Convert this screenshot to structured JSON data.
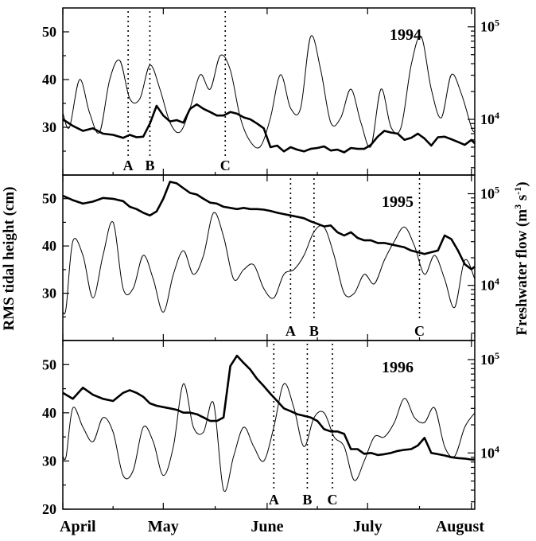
{
  "chart_data": {
    "type": "line",
    "ylabel_left": "RMS tidal height (cm)",
    "ylabel_right": "Freshwater flow (m3 s-1)",
    "ylabel_right_parts": {
      "main": "Freshwater flow (m",
      "exp1": "3",
      "mid": " s",
      "exp2": "-1",
      "end": ")"
    },
    "left_axis": {
      "ylim": [
        20,
        55
      ],
      "ticks": [
        20,
        30,
        40,
        50
      ],
      "tick_labels": [
        "20",
        "30",
        "40",
        "50"
      ]
    },
    "right_axis": {
      "scale": "log",
      "ylim": [
        2500,
        160000
      ],
      "tick_values": [
        10000,
        100000
      ],
      "tick_base": "10",
      "tick_exponents": [
        "4",
        "5"
      ]
    },
    "x_axis": {
      "range_days": [
        0,
        123
      ],
      "tick_days": [
        0,
        30,
        61,
        91,
        122
      ],
      "tick_labels": [
        "April",
        "May",
        "June",
        "July",
        "August"
      ]
    },
    "panels": [
      {
        "year": "1994",
        "series": [
          {
            "role": "tidal",
            "x": [
              0,
              2,
              5,
              8,
              11,
              14,
              17,
              20,
              23,
              26,
              29,
              32,
              35,
              38,
              41,
              44,
              47,
              50,
              53,
              56,
              59,
              62,
              65,
              68,
              71,
              74,
              77,
              80,
              83,
              86,
              89,
              92,
              95,
              98,
              101,
              104,
              107,
              110,
              113,
              116,
              119,
              122,
              123
            ],
            "y": [
              33,
              30,
              40,
              33,
              29,
              40,
              44,
              36,
              36,
              43,
              38,
              31,
              29,
              34,
              41,
              38,
              45,
              42,
              32,
              27,
              26,
              32,
              41,
              34,
              34,
              49,
              42,
              31,
              32,
              38,
              31,
              26,
              38,
              30,
              30,
              43,
              49,
              38,
              32,
              41,
              37,
              30,
              29
            ]
          },
          {
            "role": "flow",
            "x": [
              0,
              3,
              6,
              9,
              12,
              15,
              18,
              20,
              22,
              24,
              26,
              28,
              30,
              32,
              34,
              36,
              38,
              40,
              42,
              44,
              46,
              48,
              50,
              52,
              54,
              56,
              58,
              60,
              62,
              64,
              66,
              68,
              70,
              72,
              74,
              76,
              78,
              80,
              82,
              84,
              86,
              88,
              90,
              92,
              94,
              96,
              98,
              100,
              102,
              104,
              106,
              108,
              110,
              112,
              114,
              116,
              118,
              120,
              122,
              123
            ],
            "y": [
              10000,
              8500,
              7500,
              8000,
              7000,
              6800,
              6300,
              6800,
              6400,
              6500,
              9000,
              14000,
              11000,
              9500,
              9800,
              9200,
              13000,
              14500,
              13000,
              12000,
              11000,
              11000,
              12000,
              11500,
              10500,
              10000,
              9000,
              8000,
              5000,
              5200,
              4500,
              5000,
              4700,
              4500,
              4800,
              4900,
              5100,
              4600,
              4700,
              4400,
              4900,
              4800,
              4800,
              5300,
              6500,
              7500,
              7200,
              7000,
              6000,
              6300,
              7000,
              6200,
              5200,
              6400,
              6500,
              6100,
              5700,
              5300,
              6000,
              5500
            ]
          }
        ],
        "event_labels": [
          "A",
          "B",
          "C"
        ],
        "event_days": [
          19.5,
          26,
          48.5
        ]
      },
      {
        "year": "1995",
        "series": [
          {
            "role": "tidal",
            "x": [
              0,
              1,
              3,
              6,
              9,
              12,
              15,
              18,
              21,
              24,
              27,
              30,
              33,
              36,
              39,
              42,
              45,
              48,
              51,
              54,
              57,
              60,
              63,
              66,
              69,
              72,
              75,
              78,
              81,
              84,
              87,
              90,
              93,
              96,
              99,
              102,
              105,
              108,
              111,
              114,
              117,
              120,
              123
            ],
            "y": [
              26,
              27,
              41,
              38,
              29,
              38,
              45,
              31,
              31,
              38,
              33,
              26,
              34,
              39,
              34,
              38,
              47,
              42,
              33,
              35,
              36,
              31,
              29,
              34,
              35,
              38,
              43,
              44,
              38,
              30,
              30,
              34,
              32,
              37,
              41,
              44,
              40,
              34,
              38,
              33,
              27,
              37,
              33
            ]
          },
          {
            "role": "flow",
            "x": [
              0,
              3,
              6,
              9,
              12,
              15,
              18,
              20,
              22,
              24,
              26,
              28,
              30,
              32,
              34,
              36,
              38,
              40,
              42,
              44,
              46,
              48,
              50,
              52,
              54,
              56,
              58,
              60,
              62,
              64,
              66,
              68,
              70,
              72,
              74,
              76,
              78,
              80,
              82,
              84,
              86,
              88,
              90,
              92,
              94,
              96,
              98,
              100,
              102,
              104,
              106,
              108,
              110,
              112,
              114,
              116,
              118,
              120,
              122,
              123
            ],
            "y": [
              95000,
              85000,
              78000,
              82000,
              90000,
              88000,
              83000,
              72000,
              68000,
              62000,
              58000,
              64000,
              88000,
              135000,
              130000,
              115000,
              102000,
              98000,
              88000,
              80000,
              78000,
              72000,
              70000,
              68000,
              70000,
              68000,
              68000,
              67000,
              65000,
              62000,
              60000,
              58000,
              56000,
              54000,
              50000,
              47000,
              44000,
              45000,
              38000,
              35000,
              38000,
              33000,
              31000,
              31000,
              29000,
              29000,
              28000,
              27000,
              26000,
              24000,
              23000,
              22000,
              23000,
              24000,
              35000,
              32000,
              24000,
              17000,
              15000,
              16000
            ]
          }
        ],
        "event_labels": [
          "A",
          "B",
          "C"
        ],
        "event_days": [
          68,
          75,
          106.5
        ]
      },
      {
        "year": "1996",
        "series": [
          {
            "role": "tidal",
            "x": [
              0,
              1,
              3,
              6,
              9,
              12,
              15,
              18,
              21,
              24,
              27,
              30,
              33,
              36,
              39,
              42,
              45,
              48,
              51,
              54,
              57,
              60,
              63,
              66,
              69,
              72,
              75,
              78,
              81,
              84,
              87,
              90,
              93,
              96,
              99,
              102,
              105,
              108,
              111,
              114,
              117,
              120,
              123
            ],
            "y": [
              31,
              31,
              41,
              37,
              34,
              39,
              36,
              27,
              28,
              37,
              34,
              27,
              33,
              46,
              37,
              36,
              42,
              24,
              31,
              37,
              33,
              30,
              37,
              46,
              41,
              33,
              39,
              40,
              35,
              33,
              26,
              30,
              35,
              35,
              38,
              43,
              39,
              38,
              41,
              33,
              31,
              37,
              40
            ]
          },
          {
            "role": "flow",
            "x": [
              0,
              3,
              6,
              9,
              12,
              15,
              18,
              20,
              22,
              24,
              26,
              28,
              30,
              32,
              34,
              36,
              38,
              40,
              42,
              44,
              46,
              48,
              50,
              52,
              54,
              56,
              58,
              60,
              62,
              64,
              66,
              68,
              70,
              72,
              74,
              76,
              78,
              80,
              82,
              84,
              86,
              88,
              90,
              92,
              94,
              96,
              98,
              100,
              102,
              104,
              106,
              108,
              110,
              112,
              114,
              116,
              118,
              120,
              122,
              123
            ],
            "y": [
              44000,
              38000,
              50000,
              42000,
              38000,
              36000,
              44000,
              47000,
              44000,
              40000,
              34000,
              32000,
              31000,
              30000,
              29000,
              27000,
              27000,
              26000,
              24000,
              22000,
              22000,
              24000,
              85000,
              110000,
              92000,
              78000,
              62000,
              52000,
              43000,
              36000,
              30000,
              28000,
              26000,
              25000,
              24000,
              22000,
              18000,
              17000,
              17000,
              16000,
              11000,
              11000,
              9800,
              10000,
              9500,
              9700,
              10000,
              10500,
              10800,
              11000,
              12000,
              14500,
              10000,
              9700,
              9400,
              9000,
              8800,
              8700,
              8500,
              8500
            ]
          }
        ],
        "event_labels": [
          "A",
          "B",
          "C"
        ],
        "event_days": [
          63,
          73,
          80.5
        ]
      }
    ]
  }
}
